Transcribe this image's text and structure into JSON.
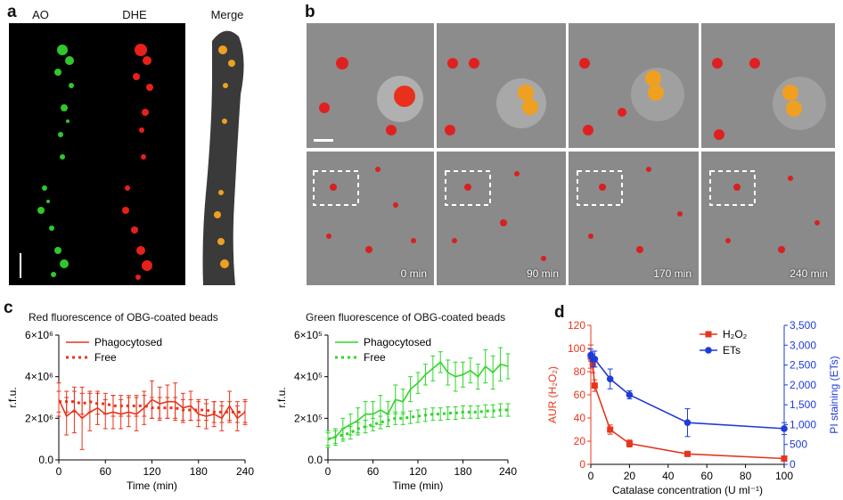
{
  "panels": {
    "a": {
      "letter": "a",
      "channels": [
        "AO",
        "DHE",
        "Merge"
      ]
    },
    "b": {
      "letter": "b",
      "timepoints": [
        "0 min",
        "90 min",
        "170 min",
        "240 min"
      ]
    },
    "c": {
      "letter": "c"
    },
    "d": {
      "letter": "d"
    }
  },
  "chart_data": [
    {
      "id": "c-red",
      "type": "line",
      "title": "Red fluorescence of OBG-coated beads",
      "xlabel": "Time (min)",
      "ylabel": "r.f.u.",
      "xlim": [
        0,
        240
      ],
      "ylim": [
        0,
        6000000
      ],
      "xticks": [
        "0",
        "60",
        "120",
        "180",
        "240"
      ],
      "yticks": [
        "0.0",
        "2×10⁶",
        "4×10⁶",
        "6×10⁶"
      ],
      "legend": [
        "Phagocytosed",
        "Free"
      ],
      "color": "#e8341c",
      "x": [
        0,
        10,
        20,
        30,
        40,
        50,
        60,
        70,
        80,
        90,
        100,
        110,
        120,
        130,
        140,
        150,
        160,
        170,
        180,
        190,
        200,
        210,
        220,
        230,
        240
      ],
      "series": [
        {
          "name": "Phagocytosed",
          "style": "solid",
          "values": [
            2900000.0,
            2100000.0,
            2400000.0,
            2000000.0,
            2300000.0,
            2500000.0,
            2200000.0,
            2300000.0,
            2200000.0,
            2300000.0,
            2200000.0,
            2500000.0,
            2900000.0,
            2700000.0,
            2800000.0,
            2800000.0,
            2500000.0,
            2600000.0,
            2200000.0,
            2100000.0,
            2200000.0,
            2000000.0,
            2600000.0,
            2000000.0,
            2300000.0
          ],
          "err": [
            800000.0,
            900000.0,
            1100000.0,
            1500000.0,
            900000.0,
            800000.0,
            700000.0,
            800000.0,
            700000.0,
            700000.0,
            800000.0,
            800000.0,
            900000.0,
            800000.0,
            800000.0,
            900000.0,
            700000.0,
            700000.0,
            600000.0,
            600000.0,
            600000.0,
            600000.0,
            700000.0,
            600000.0,
            600000.0
          ]
        },
        {
          "name": "Free",
          "style": "dotted",
          "values": [
            2800000.0,
            2800000.0,
            2800000.0,
            2700000.0,
            2800000.0,
            2700000.0,
            2700000.0,
            2600000.0,
            2600000.0,
            2600000.0,
            2600000.0,
            2600000.0,
            2500000.0,
            2500000.0,
            2500000.0,
            2500000.0,
            2400000.0,
            2400000.0,
            2400000.0,
            2400000.0,
            2300000.0,
            2300000.0,
            2300000.0,
            2300000.0,
            2300000.0
          ],
          "err": [
            500000.0,
            500000.0,
            500000.0,
            500000.0,
            500000.0,
            500000.0,
            500000.0,
            500000.0,
            500000.0,
            500000.0,
            500000.0,
            500000.0,
            500000.0,
            500000.0,
            500000.0,
            500000.0,
            500000.0,
            500000.0,
            500000.0,
            500000.0,
            500000.0,
            500000.0,
            500000.0,
            500000.0,
            500000.0
          ]
        }
      ]
    },
    {
      "id": "c-green",
      "type": "line",
      "title": "Green fluorescence of OBG-coated beads",
      "xlabel": "Time (min)",
      "ylabel": "r.f.u.",
      "xlim": [
        0,
        240
      ],
      "ylim": [
        0,
        600000
      ],
      "xticks": [
        "0",
        "60",
        "120",
        "180",
        "240"
      ],
      "yticks": [
        "0.0",
        "2×10⁵",
        "4×10⁵",
        "6×10⁵"
      ],
      "legend": [
        "Phagocytosed",
        "Free"
      ],
      "color": "#2fd62a",
      "x": [
        0,
        10,
        20,
        30,
        40,
        50,
        60,
        70,
        80,
        90,
        100,
        110,
        120,
        130,
        140,
        150,
        160,
        170,
        180,
        190,
        200,
        210,
        220,
        230,
        240
      ],
      "series": [
        {
          "name": "Phagocytosed",
          "style": "solid",
          "values": [
            100000,
            110000,
            150000,
            170000,
            190000,
            220000,
            220000,
            240000,
            220000,
            290000,
            280000,
            340000,
            370000,
            410000,
            440000,
            470000,
            420000,
            400000,
            410000,
            430000,
            400000,
            450000,
            420000,
            460000,
            450000
          ],
          "err": [
            40000,
            40000,
            50000,
            50000,
            60000,
            60000,
            60000,
            70000,
            60000,
            70000,
            60000,
            60000,
            50000,
            50000,
            60000,
            50000,
            60000,
            70000,
            60000,
            60000,
            60000,
            80000,
            80000,
            80000,
            60000
          ]
        },
        {
          "name": "Free",
          "style": "dotted",
          "values": [
            100000,
            110000,
            120000,
            130000,
            150000,
            160000,
            170000,
            180000,
            190000,
            200000,
            200000,
            205000,
            210000,
            215000,
            220000,
            220000,
            225000,
            225000,
            230000,
            230000,
            230000,
            235000,
            235000,
            240000,
            240000
          ],
          "err": [
            30000,
            30000,
            30000,
            30000,
            30000,
            30000,
            30000,
            30000,
            30000,
            30000,
            30000,
            30000,
            30000,
            30000,
            30000,
            30000,
            30000,
            30000,
            30000,
            30000,
            30000,
            30000,
            30000,
            30000,
            30000
          ]
        }
      ]
    },
    {
      "id": "d",
      "type": "line",
      "xlabel": "Catalase concentration (U ml⁻¹)",
      "xlim": [
        0,
        100
      ],
      "xticks": [
        "0",
        "20",
        "40",
        "60",
        "80",
        "100"
      ],
      "left_axis": {
        "label": "AUR (H₂O₂)",
        "ylim": [
          0,
          120
        ],
        "ticks": [
          "0",
          "20",
          "40",
          "60",
          "80",
          "100",
          "120"
        ],
        "color": "#e8341c"
      },
      "right_axis": {
        "label": "PI staining (ETs)",
        "ylim": [
          0,
          3500
        ],
        "ticks": [
          "0",
          "500",
          "1,000",
          "1,500",
          "2,000",
          "2,500",
          "3,000",
          "3,500"
        ],
        "color": "#1f3bd8"
      },
      "series": [
        {
          "name": "H₂O₂",
          "axis": "left",
          "marker": "square",
          "x": [
            0,
            1,
            2,
            10,
            20,
            50,
            100
          ],
          "values": [
            93,
            87,
            68,
            30,
            18,
            9,
            5
          ],
          "err": [
            10,
            8,
            5,
            4,
            3,
            2,
            1
          ]
        },
        {
          "name": "ETs",
          "axis": "right",
          "marker": "circle",
          "x": [
            0,
            1,
            2,
            10,
            20,
            50,
            100
          ],
          "values": [
            2750,
            2650,
            2650,
            2150,
            1750,
            1050,
            900
          ],
          "err": [
            150,
            200,
            200,
            250,
            100,
            350,
            150
          ]
        }
      ],
      "legend": [
        "H₂O₂",
        "ETs"
      ]
    }
  ]
}
